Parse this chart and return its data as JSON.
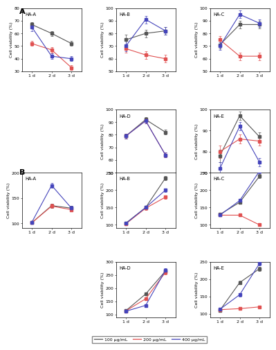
{
  "xticklabels": [
    "1 d",
    "2 d",
    "3 d"
  ],
  "xvals": [
    0,
    1,
    2
  ],
  "colors": {
    "100": "#555555",
    "200": "#e05050",
    "400": "#4444bb"
  },
  "legend_labels": [
    "100 μg/mL",
    "200 μg/mL",
    "400 μg/mL"
  ],
  "panel_A": {
    "subplots": [
      {
        "title": "HA-A",
        "ylim": [
          30,
          80
        ],
        "yticks": [
          30,
          40,
          50,
          60,
          70,
          80
        ],
        "data": {
          "100": {
            "y": [
              67,
              60,
              52
            ],
            "err": [
              2,
              2,
              2
            ]
          },
          "200": {
            "y": [
              52,
              47,
              33
            ],
            "err": [
              2,
              2,
              2
            ]
          },
          "400": {
            "y": [
              65,
              42,
              40
            ],
            "err": [
              3,
              2,
              2
            ]
          }
        }
      },
      {
        "title": "HA-B",
        "ylim": [
          50,
          100
        ],
        "yticks": [
          50,
          60,
          70,
          80,
          90,
          100
        ],
        "data": {
          "100": {
            "y": [
              75,
              80,
              82
            ],
            "err": [
              4,
              3,
              3
            ]
          },
          "200": {
            "y": [
              68,
              63,
              60
            ],
            "err": [
              3,
              3,
              3
            ]
          },
          "400": {
            "y": [
              70,
              91,
              82
            ],
            "err": [
              4,
              3,
              3
            ]
          }
        }
      },
      {
        "title": "HA-C",
        "ylim": [
          50,
          100
        ],
        "yticks": [
          50,
          60,
          70,
          80,
          90,
          100
        ],
        "data": {
          "100": {
            "y": [
              71,
              87,
              87
            ],
            "err": [
              3,
              3,
              3
            ]
          },
          "200": {
            "y": [
              75,
              62,
              62
            ],
            "err": [
              3,
              3,
              3
            ]
          },
          "400": {
            "y": [
              70,
              95,
              88
            ],
            "err": [
              3,
              3,
              3
            ]
          }
        }
      },
      {
        "title": "HA-D",
        "ylim": [
          50,
          100
        ],
        "yticks": [
          50,
          60,
          70,
          80,
          90,
          100
        ],
        "data": {
          "100": {
            "y": [
              79,
              92,
              82
            ],
            "err": [
              2,
              2,
              2
            ]
          },
          "200": {
            "y": [
              79,
              91,
              64
            ],
            "err": [
              2,
              2,
              2
            ]
          },
          "400": {
            "y": [
              79,
              91,
              64
            ],
            "err": [
              2,
              2,
              2
            ]
          }
        }
      },
      {
        "title": "HA-E",
        "ylim": [
          70,
          100
        ],
        "yticks": [
          70,
          80,
          90,
          100
        ],
        "data": {
          "100": {
            "y": [
              78,
              97,
              87
            ],
            "err": [
              3,
              2,
              2
            ]
          },
          "200": {
            "y": [
              80,
              86,
              85
            ],
            "err": [
              3,
              2,
              2
            ]
          },
          "400": {
            "y": [
              72,
              92,
              75
            ],
            "err": [
              3,
              2,
              2
            ]
          }
        }
      }
    ]
  },
  "panel_B": {
    "subplots": [
      {
        "title": "HA-A",
        "ylim": [
          90,
          200
        ],
        "yticks": [
          100,
          150,
          200
        ],
        "data": {
          "100": {
            "y": [
              101,
              135,
              130
            ],
            "err": [
              2,
              4,
              4
            ]
          },
          "200": {
            "y": [
              101,
              134,
              127
            ],
            "err": [
              2,
              4,
              4
            ]
          },
          "400": {
            "y": [
              102,
              175,
              130
            ],
            "err": [
              2,
              5,
              4
            ]
          }
        }
      },
      {
        "title": "HA-B",
        "ylim": [
          90,
          250
        ],
        "yticks": [
          100,
          150,
          200,
          250
        ],
        "data": {
          "100": {
            "y": [
              105,
              150,
              235
            ],
            "err": [
              3,
              5,
              6
            ]
          },
          "200": {
            "y": [
              103,
              148,
              180
            ],
            "err": [
              3,
              5,
              5
            ]
          },
          "400": {
            "y": [
              104,
              150,
              200
            ],
            "err": [
              3,
              5,
              5
            ]
          }
        }
      },
      {
        "title": "HA-C",
        "ylim": [
          90,
          250
        ],
        "yticks": [
          100,
          150,
          200,
          250
        ],
        "data": {
          "100": {
            "y": [
              130,
              165,
              240
            ],
            "err": [
              4,
              5,
              6
            ]
          },
          "200": {
            "y": [
              128,
              128,
              100
            ],
            "err": [
              4,
              4,
              3
            ]
          },
          "400": {
            "y": [
              128,
              170,
              255
            ],
            "err": [
              4,
              5,
              7
            ]
          }
        }
      },
      {
        "title": "HA-D",
        "ylim": [
          90,
          300
        ],
        "yticks": [
          100,
          150,
          200,
          250,
          300
        ],
        "data": {
          "100": {
            "y": [
              115,
              178,
              265
            ],
            "err": [
              4,
              5,
              7
            ]
          },
          "200": {
            "y": [
              114,
              160,
              260
            ],
            "err": [
              4,
              5,
              7
            ]
          },
          "400": {
            "y": [
              113,
              135,
              268
            ],
            "err": [
              4,
              4,
              7
            ]
          }
        }
      },
      {
        "title": "HA-E",
        "ylim": [
          90,
          250
        ],
        "yticks": [
          100,
          150,
          200,
          250
        ],
        "data": {
          "100": {
            "y": [
              110,
              190,
              230
            ],
            "err": [
              3,
              5,
              6
            ]
          },
          "200": {
            "y": [
              112,
              115,
              120
            ],
            "err": [
              3,
              3,
              3
            ]
          },
          "400": {
            "y": [
              113,
              155,
              245
            ],
            "err": [
              3,
              5,
              6
            ]
          }
        }
      }
    ]
  }
}
